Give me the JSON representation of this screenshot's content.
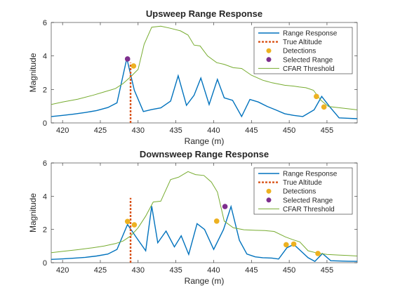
{
  "chart_data": [
    {
      "type": "line",
      "title": "Upsweep Range Response",
      "xlabel": "Range (m)",
      "ylabel": "Magnitude",
      "xlim": [
        418.5,
        459
      ],
      "ylim": [
        0,
        6
      ],
      "xticks": [
        "420",
        "425",
        "430",
        "435",
        "440",
        "445",
        "450",
        "455"
      ],
      "yticks": [
        "0",
        "2",
        "4",
        "6"
      ],
      "grid": false,
      "legend_position": "top-right",
      "colors": {
        "range_response": "#0072BD",
        "true_altitude": "#D95319",
        "detections": "#EDB120",
        "selected_range": "#7E2F8E",
        "cfar_threshold": "#77AC30"
      },
      "legend": [
        "Range Response",
        "True Altitude",
        "Detections",
        "Selected Range",
        "CFAR Threshold"
      ],
      "range_response": {
        "x": [
          418.5,
          420,
          421.5,
          423,
          424.5,
          426,
          427.2,
          428.5,
          429.5,
          430.7,
          431.8,
          433,
          434.3,
          435.3,
          436.4,
          437.4,
          438.3,
          439.4,
          440.5,
          441.4,
          442.5,
          443.7,
          444.8,
          445.9,
          447.1,
          448.2,
          449.4,
          450.6,
          451.8,
          453.3,
          454.3,
          455.4,
          456.6,
          457.6,
          459
        ],
        "y": [
          0.38,
          0.45,
          0.53,
          0.62,
          0.74,
          0.92,
          1.2,
          3.85,
          1.95,
          0.68,
          0.8,
          0.9,
          1.3,
          2.82,
          1.05,
          1.65,
          2.68,
          1.1,
          2.6,
          1.5,
          1.35,
          0.38,
          1.4,
          1.25,
          0.98,
          0.78,
          0.55,
          0.45,
          0.38,
          0.78,
          1.58,
          0.95,
          0.3,
          0.28,
          0.25
        ]
      },
      "true_altitude": {
        "x": 429,
        "y": [
          0,
          3.6
        ]
      },
      "detections": {
        "x": [
          429.4,
          453.6,
          454.6
        ],
        "y": [
          3.4,
          1.58,
          0.95
        ]
      },
      "selected_range": {
        "x": 428.6,
        "y": 3.82
      },
      "cfar_threshold": {
        "x": [
          418.5,
          420,
          422,
          424,
          425.5,
          427,
          428,
          429,
          430,
          430.8,
          431.8,
          433,
          434.3,
          435.6,
          436.6,
          437.4,
          438.2,
          439.2,
          440.4,
          441.4,
          442.6,
          443.7,
          445,
          446.5,
          447.7,
          449.4,
          450.6,
          451.3,
          452.2,
          453.2,
          454.2,
          455.2,
          456.4,
          457.7,
          459
        ],
        "y": [
          1.1,
          1.25,
          1.42,
          1.65,
          1.85,
          2.05,
          2.35,
          2.75,
          3.2,
          4.7,
          5.72,
          5.78,
          5.65,
          5.5,
          5.25,
          4.65,
          4.6,
          4.0,
          3.6,
          3.5,
          3.3,
          3.25,
          2.85,
          2.55,
          2.4,
          2.25,
          2.2,
          2.15,
          2.1,
          1.95,
          1.35,
          0.98,
          0.92,
          0.85,
          0.78
        ]
      }
    },
    {
      "type": "line",
      "title": "Downsweep Range Response",
      "xlabel": "Range (m)",
      "ylabel": "Magnitude",
      "xlim": [
        418.5,
        459
      ],
      "ylim": [
        0,
        6
      ],
      "xticks": [
        "420",
        "425",
        "430",
        "435",
        "440",
        "445",
        "450",
        "455"
      ],
      "yticks": [
        "0",
        "2",
        "4",
        "6"
      ],
      "grid": false,
      "legend_position": "top-right",
      "colors": {
        "range_response": "#0072BD",
        "true_altitude": "#D95319",
        "detections": "#EDB120",
        "selected_range": "#7E2F8E",
        "cfar_threshold": "#77AC30"
      },
      "legend": [
        "Range Response",
        "True Altitude",
        "Detections",
        "Selected Range",
        "CFAR Threshold"
      ],
      "range_response": {
        "x": [
          418.5,
          420,
          421.5,
          423,
          424.5,
          426,
          427.2,
          428.6,
          429.8,
          431,
          431.8,
          432.6,
          433.7,
          434.8,
          435.7,
          436.7,
          437.8,
          438.8,
          440,
          441.3,
          442.3,
          443.4,
          444.4,
          445.5,
          446.5,
          447.7,
          448.6,
          449.7,
          450.6,
          451.6,
          452.5,
          453.4,
          454.4,
          455.5,
          456.6,
          457.8,
          459
        ],
        "y": [
          0.2,
          0.23,
          0.27,
          0.32,
          0.4,
          0.52,
          0.8,
          2.3,
          1.5,
          0.72,
          3.4,
          1.2,
          1.9,
          0.95,
          1.62,
          0.5,
          2.35,
          2.0,
          0.8,
          2.0,
          3.38,
          1.35,
          0.52,
          0.35,
          0.3,
          0.28,
          0.22,
          0.9,
          1.1,
          0.68,
          0.3,
          0.08,
          0.55,
          0.12,
          0.1,
          0.09,
          0.08
        ]
      },
      "true_altitude": {
        "x": 429,
        "y": [
          0,
          3.9
        ]
      },
      "detections": {
        "x": [
          428.6,
          429.5,
          440.4,
          449.6,
          450.6,
          453.8
        ],
        "y": [
          2.48,
          2.28,
          2.5,
          1.08,
          1.12,
          0.55
        ]
      },
      "selected_range": {
        "x": 441.5,
        "y": 3.38
      },
      "cfar_threshold": {
        "x": [
          418.5,
          420,
          422,
          424,
          425.5,
          427,
          428,
          429,
          430,
          431,
          432,
          433,
          434.3,
          435.4,
          436.6,
          437.6,
          438.7,
          439.7,
          440.5,
          441.4,
          442.6,
          444,
          445.5,
          446.8,
          448,
          449.5,
          450.5,
          451.4,
          452.5,
          453.7,
          455,
          456.5,
          457.8,
          459
        ],
        "y": [
          0.6,
          0.68,
          0.78,
          0.9,
          1.0,
          1.15,
          1.3,
          1.6,
          2.1,
          2.8,
          3.65,
          3.7,
          5.0,
          5.15,
          5.48,
          5.3,
          5.25,
          4.85,
          4.25,
          2.5,
          2.1,
          1.98,
          1.95,
          1.93,
          1.88,
          1.55,
          1.38,
          1.25,
          0.72,
          0.58,
          0.5,
          0.46,
          0.43,
          0.4
        ]
      }
    }
  ]
}
